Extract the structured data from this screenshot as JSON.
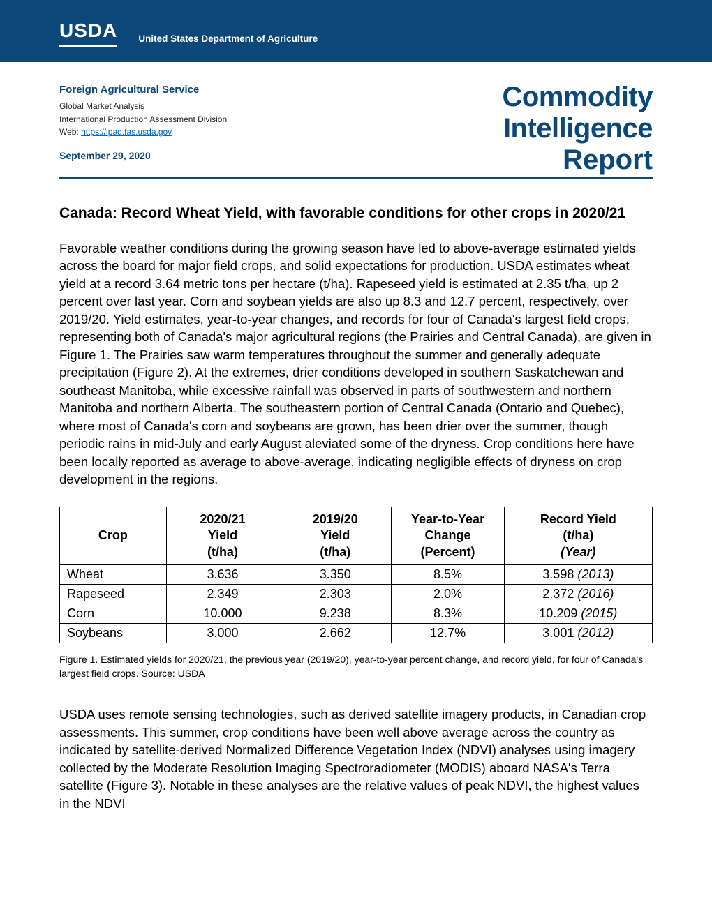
{
  "header": {
    "logo_text": "USDA",
    "dept_name": "United States Department of Agriculture",
    "band_bg": "#0b4778"
  },
  "meta": {
    "service": "Foreign Agricultural Service",
    "division1": "Global Market Analysis",
    "division2": "International Production Assessment Division",
    "web_prefix": "Web: ",
    "web_url": "https://ipad.fas.usda.gov",
    "date": "September 29, 2020"
  },
  "doc_title": {
    "line1": "Commodity",
    "line2": "Intelligence",
    "line3": "Report"
  },
  "headline": "Canada: Record Wheat Yield, with favorable conditions for other crops in 2020/21",
  "para1": "Favorable weather conditions during the growing season have led to above-average estimated yields across the board for major field crops, and solid expectations for production. USDA estimates wheat yield at a record 3.64 metric tons per hectare (t/ha). Rapeseed yield is estimated at 2.35 t/ha, up 2 percent over last year. Corn and soybean yields are also up 8.3 and 12.7 percent, respectively, over 2019/20. Yield estimates, year-to-year changes, and records for four of Canada's largest field crops, representing both of Canada's major agricultural regions (the Prairies and Central Canada), are given in Figure 1. The Prairies saw warm temperatures throughout the summer and generally adequate precipitation (Figure 2). At the extremes, drier conditions developed in southern Saskatchewan and southeast Manitoba, while excessive rainfall was observed in parts of southwestern and northern Manitoba and northern Alberta. The southeastern portion of Central Canada (Ontario and Quebec), where most of Canada's corn and soybeans are grown, has been drier over the summer, though periodic rains in mid-July and early August aleviated some of the dryness. Crop conditions here have been locally reported as average to above-average, indicating negligible effects of dryness on crop development in the regions.",
  "table": {
    "headers": {
      "col1": "Crop",
      "col2_l1": "2020/21",
      "col2_l2": "Yield",
      "col2_l3": "(t/ha)",
      "col3_l1": "2019/20",
      "col3_l2": "Yield",
      "col3_l3": "(t/ha)",
      "col4_l1": "Year-to-Year",
      "col4_l2": "Change",
      "col4_l3": "(Percent)",
      "col5_l1": "Record Yield",
      "col5_l2": "(t/ha)",
      "col5_l3": "(Year)"
    },
    "rows": [
      {
        "crop": "Wheat",
        "y21": "3.636",
        "y20": "3.350",
        "chg": "8.5%",
        "rec": "3.598",
        "recyr": "(2013)"
      },
      {
        "crop": "Rapeseed",
        "y21": "2.349",
        "y20": "2.303",
        "chg": "2.0%",
        "rec": "2.372",
        "recyr": "(2016)"
      },
      {
        "crop": "Corn",
        "y21": "10.000",
        "y20": "9.238",
        "chg": "8.3%",
        "rec": "10.209",
        "recyr": "(2015)"
      },
      {
        "crop": "Soybeans",
        "y21": "3.000",
        "y20": "2.662",
        "chg": "12.7%",
        "rec": "3.001",
        "recyr": "(2012)"
      }
    ]
  },
  "caption": "Figure 1. Estimated yields for 2020/21, the previous year (2019/20), year-to-year percent change, and record yield, for four of Canada's largest field crops. Source: USDA",
  "para2": "USDA uses remote sensing technologies, such as derived satellite imagery products, in Canadian crop assessments. This summer, crop conditions have been well above average across the country as indicated by satellite-derived Normalized Difference Vegetation Index (NDVI) analyses using imagery collected by the Moderate Resolution Imaging Spectroradiometer (MODIS) aboard NASA's Terra satellite (Figure 3). Notable in these analyses are the relative values of peak NDVI, the highest values in the NDVI"
}
